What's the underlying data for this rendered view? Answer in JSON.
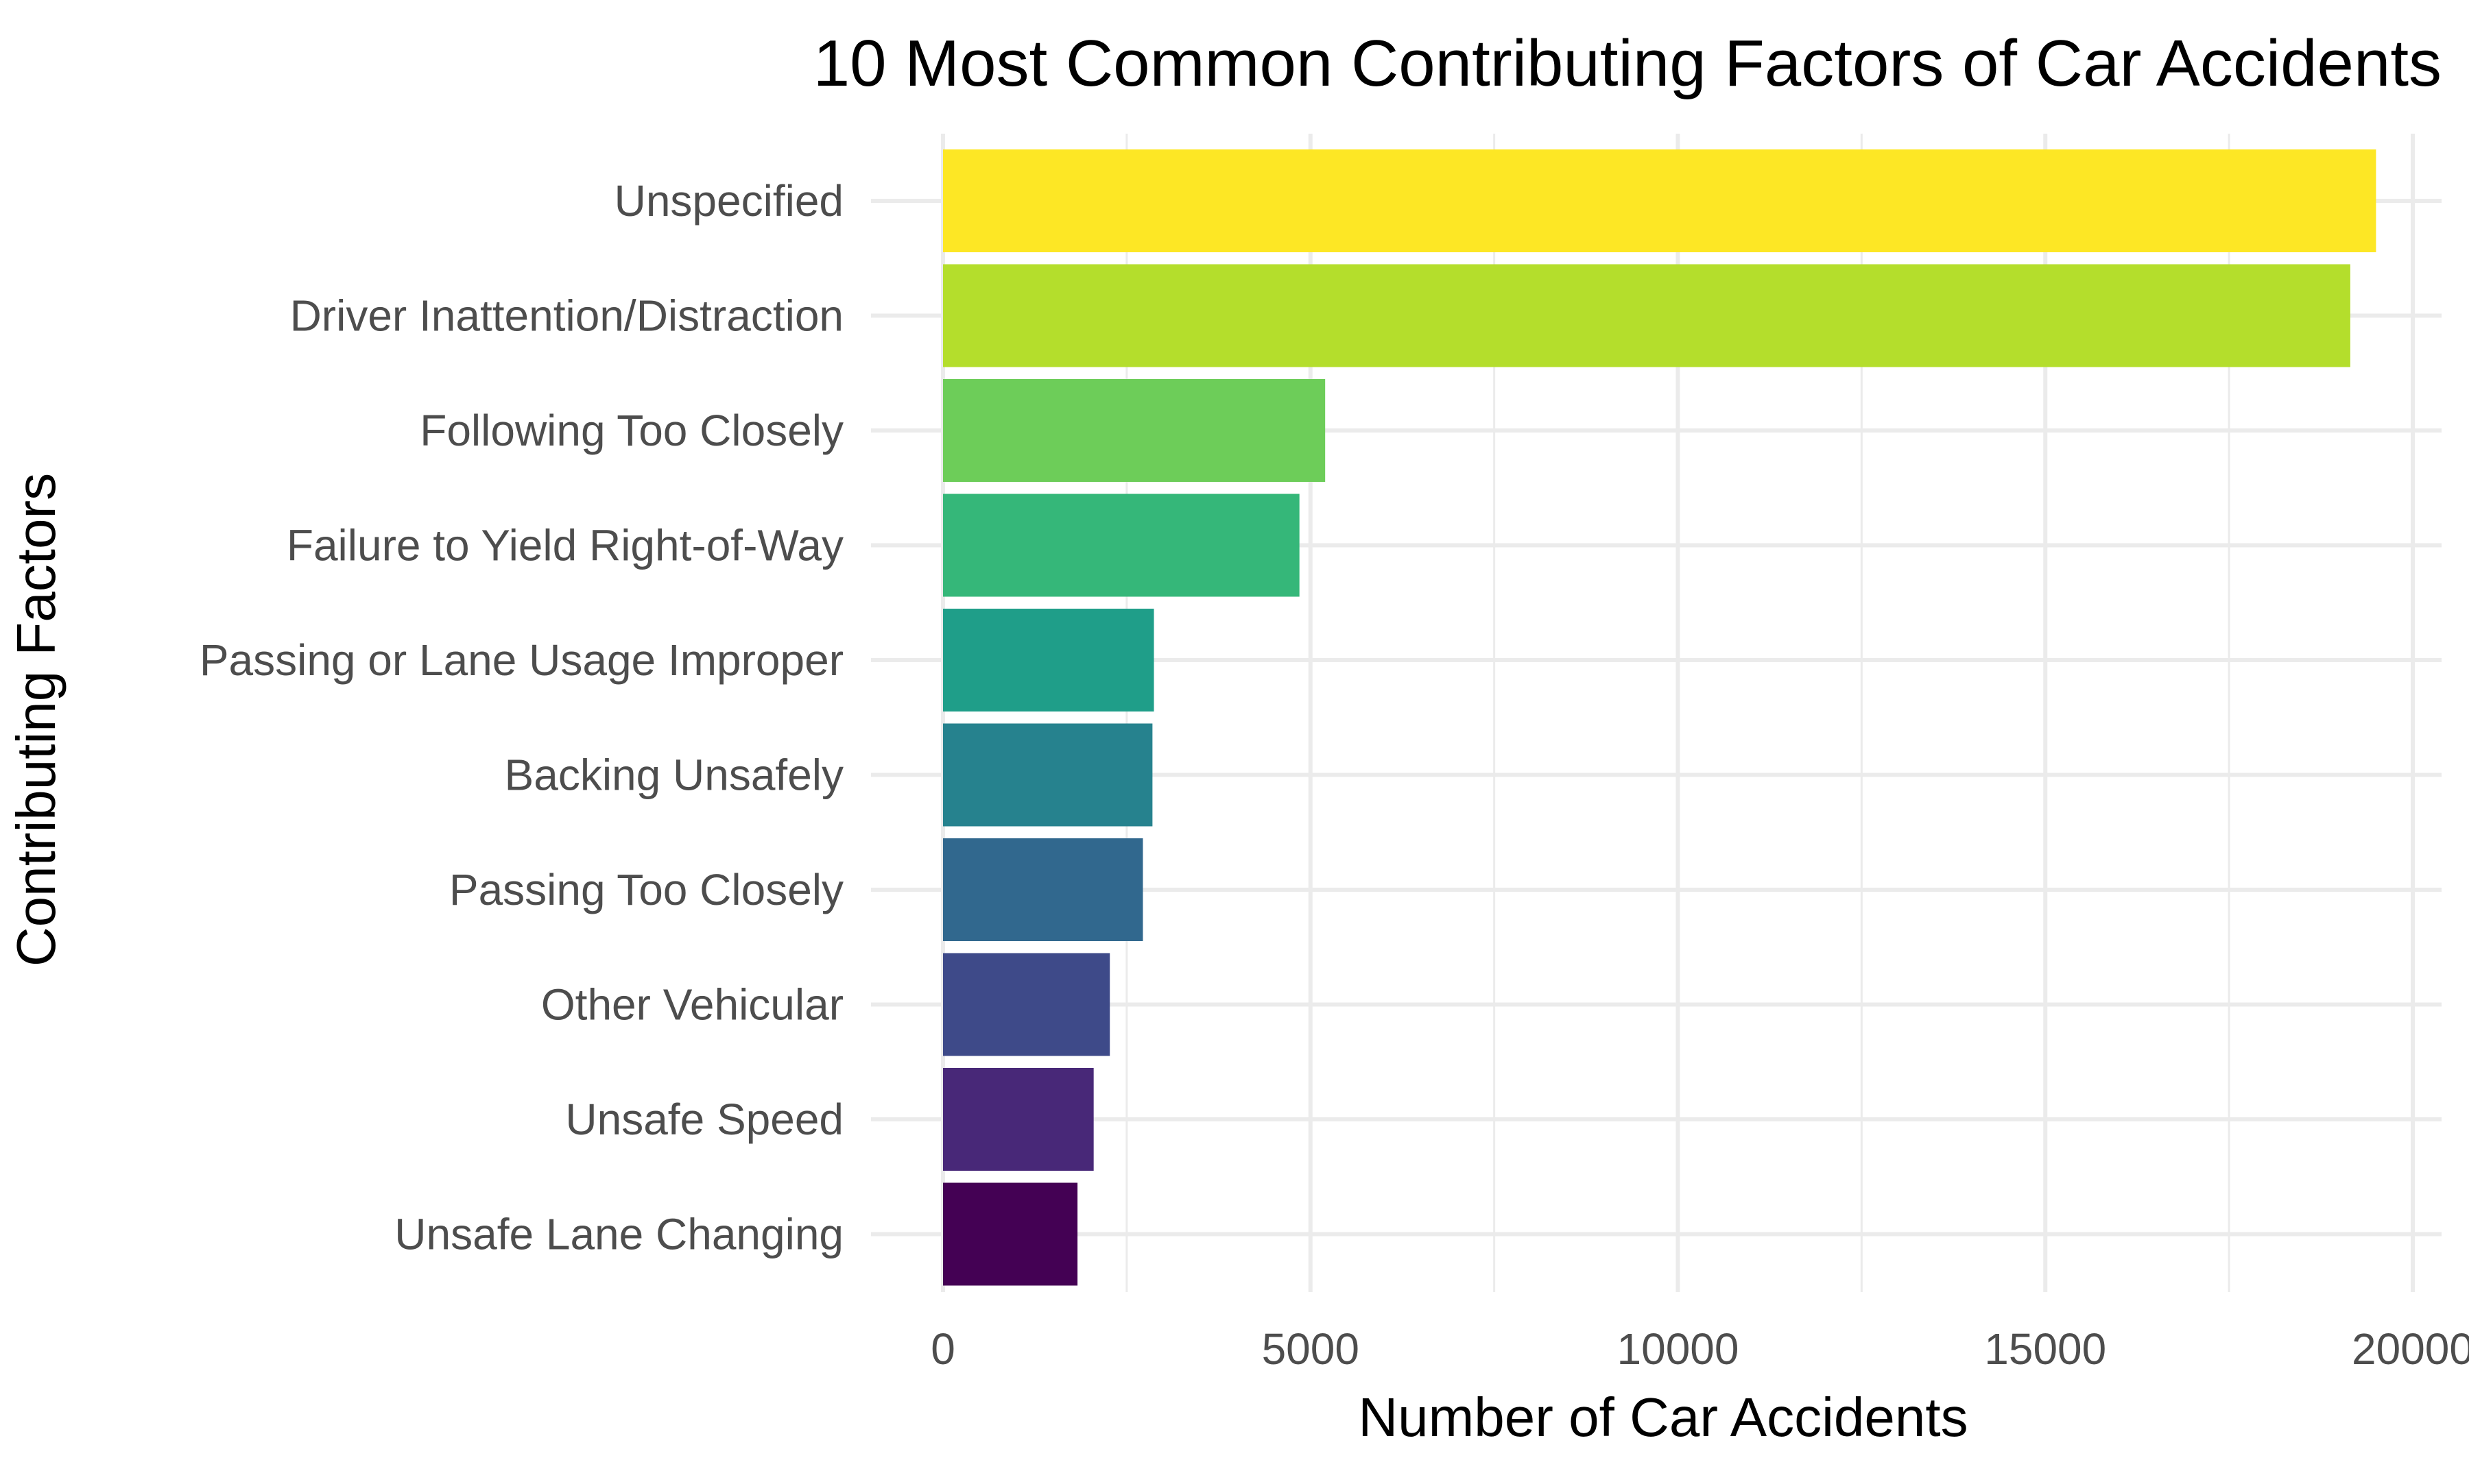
{
  "chart_data": {
    "type": "bar",
    "orientation": "horizontal",
    "title": "10 Most Common Contributing Factors of Car Accidents",
    "xlabel": "Number of Car Accidents",
    "ylabel": "Contributing Factors",
    "xlim": [
      0,
      20400
    ],
    "x_ticks": [
      0,
      5000,
      10000,
      15000,
      20000
    ],
    "x_tick_labels": [
      "0",
      "5000",
      "10000",
      "15000",
      "20000"
    ],
    "grid": true,
    "legend": "none",
    "categories": [
      "Unspecified",
      "Driver Inattention/Distraction",
      "Following Too Closely",
      "Failure to Yield Right-of-Way",
      "Passing or Lane Usage Improper",
      "Backing Unsafely",
      "Passing Too Closely",
      "Other Vehicular",
      "Unsafe Speed",
      "Unsafe Lane Changing"
    ],
    "values": [
      19500,
      19150,
      5200,
      4850,
      2870,
      2850,
      2720,
      2270,
      2050,
      1830
    ],
    "colors": [
      "#FDE725",
      "#B4DE2C",
      "#6DCD59",
      "#35B779",
      "#1F9E89",
      "#26828E",
      "#31688E",
      "#3E4A89",
      "#482878",
      "#440154"
    ]
  }
}
